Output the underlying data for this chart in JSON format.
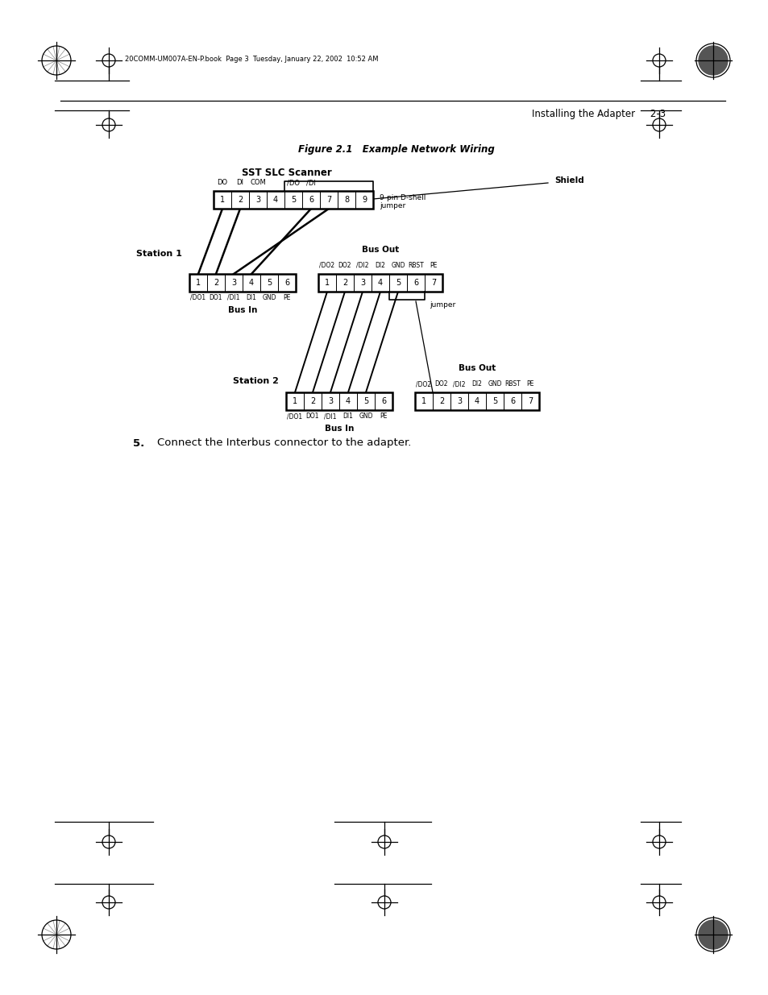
{
  "bg_color": "#ffffff",
  "text_color": "#000000",
  "figure_title": "Figure 2.1   Example Network Wiring",
  "scanner_label": "SST SLC Scanner",
  "step5_text": "5.   Connect the Interbus connector to the adapter.",
  "header_text": "Installing the Adapter     2-3",
  "top_text": "20COMM-UM007A-EN-P.book  Page 3  Tuesday, January 22, 2002  10:52 AM",
  "scanner_pins": [
    "1",
    "2",
    "3",
    "4",
    "5",
    "6",
    "7",
    "8",
    "9"
  ],
  "scanner_label_9pin": "9-pin D-shell\njumper",
  "scanner_label_shield": "Shield",
  "station1_label": "Station 1",
  "station1_busin_pins": [
    "1",
    "2",
    "3",
    "4",
    "5",
    "6"
  ],
  "station1_busin_labels": [
    "/DO1",
    "DO1",
    "/DI1",
    "DI1",
    "GND",
    "PE"
  ],
  "station1_busin_title": "Bus In",
  "station1_busout_pins": [
    "1",
    "2",
    "3",
    "4",
    "5",
    "6",
    "7"
  ],
  "station1_busout_labels": [
    "/DO2",
    "DO2",
    "/DI2",
    "DI2",
    "GND",
    "RBST",
    "PE"
  ],
  "station1_busout_title": "Bus Out",
  "station1_jumper_label": "jumper",
  "station2_label": "Station 2",
  "station2_busin_pins": [
    "1",
    "2",
    "3",
    "4",
    "5",
    "6"
  ],
  "station2_busin_labels": [
    "/DO1",
    "DO1",
    "/DI1",
    "DI1",
    "GND",
    "PE"
  ],
  "station2_busin_title": "Bus In",
  "station2_busout_pins": [
    "1",
    "2",
    "3",
    "4",
    "5",
    "6",
    "7"
  ],
  "station2_busout_labels": [
    "/DO2",
    "DO2",
    "/DI2",
    "DI2",
    "GND",
    "RBST",
    "PE"
  ],
  "station2_busout_title": "Bus Out"
}
